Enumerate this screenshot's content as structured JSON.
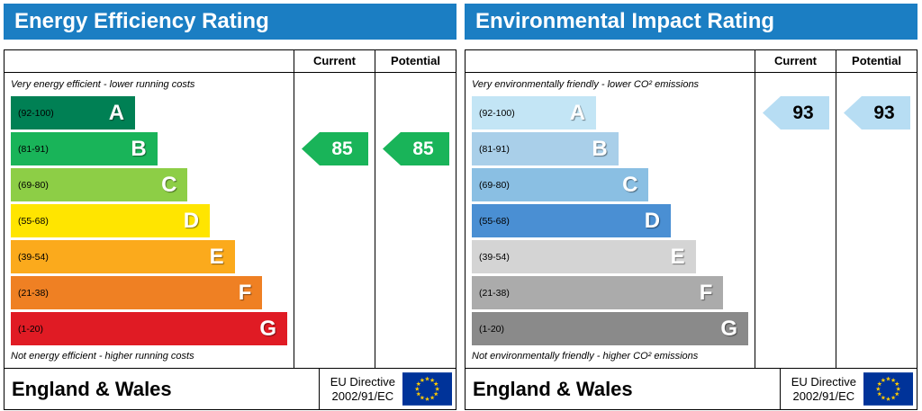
{
  "panels": [
    {
      "title": "Energy Efficiency Rating",
      "header_color": "#1b7ec3",
      "columns": {
        "current": "Current",
        "potential": "Potential"
      },
      "note_top": "Very energy efficient - lower running costs",
      "note_bottom": "Not energy efficient - higher running costs",
      "bands": [
        {
          "letter": "A",
          "range": "(92-100)",
          "color": "#008054",
          "width_pct": 45
        },
        {
          "letter": "B",
          "range": "(81-91)",
          "color": "#19b459",
          "width_pct": 53
        },
        {
          "letter": "C",
          "range": "(69-80)",
          "color": "#8dce46",
          "width_pct": 64
        },
        {
          "letter": "D",
          "range": "(55-68)",
          "color": "#ffe500",
          "width_pct": 72
        },
        {
          "letter": "E",
          "range": "(39-54)",
          "color": "#fbaa1c",
          "width_pct": 81
        },
        {
          "letter": "F",
          "range": "(21-38)",
          "color": "#ef8023",
          "width_pct": 91
        },
        {
          "letter": "G",
          "range": "(1-20)",
          "color": "#e01b24",
          "width_pct": 100
        }
      ],
      "current": {
        "value": "85",
        "band_index": 1,
        "color": "#19b459",
        "text_color": "#ffffff"
      },
      "potential": {
        "value": "85",
        "band_index": 1,
        "color": "#19b459",
        "text_color": "#ffffff"
      },
      "footer": {
        "region": "England & Wales",
        "directive_line1": "EU Directive",
        "directive_line2": "2002/91/EC"
      }
    },
    {
      "title": "Environmental Impact Rating",
      "header_color": "#1b7ec3",
      "columns": {
        "current": "Current",
        "potential": "Potential"
      },
      "note_top": "Very environmentally friendly - lower CO² emissions",
      "note_bottom": "Not environmentally friendly - higher CO² emissions",
      "bands": [
        {
          "letter": "A",
          "range": "(92-100)",
          "color": "#c3e5f5",
          "width_pct": 45
        },
        {
          "letter": "B",
          "range": "(81-91)",
          "color": "#a9cfe9",
          "width_pct": 53
        },
        {
          "letter": "C",
          "range": "(69-80)",
          "color": "#8abfe3",
          "width_pct": 64
        },
        {
          "letter": "D",
          "range": "(55-68)",
          "color": "#4a8fd3",
          "width_pct": 72
        },
        {
          "letter": "E",
          "range": "(39-54)",
          "color": "#d4d4d4",
          "width_pct": 81
        },
        {
          "letter": "F",
          "range": "(21-38)",
          "color": "#ababab",
          "width_pct": 91
        },
        {
          "letter": "G",
          "range": "(1-20)",
          "color": "#8a8a8a",
          "width_pct": 100
        }
      ],
      "current": {
        "value": "93",
        "band_index": 0,
        "color": "#b7ddf3",
        "text_color": "#000000"
      },
      "potential": {
        "value": "93",
        "band_index": 0,
        "color": "#b7ddf3",
        "text_color": "#000000"
      },
      "footer": {
        "region": "England & Wales",
        "directive_line1": "EU Directive",
        "directive_line2": "2002/91/EC"
      }
    }
  ],
  "eu_flag": {
    "field_color": "#003399",
    "star_color": "#ffcc00"
  },
  "chart_data": [
    {
      "type": "bar",
      "title": "Energy Efficiency Rating",
      "categories": [
        "A",
        "B",
        "C",
        "D",
        "E",
        "F",
        "G"
      ],
      "band_ranges": [
        "92-100",
        "81-91",
        "69-80",
        "55-68",
        "39-54",
        "21-38",
        "1-20"
      ],
      "series": [
        {
          "name": "Current",
          "values": [
            85
          ],
          "band": "B"
        },
        {
          "name": "Potential",
          "values": [
            85
          ],
          "band": "B"
        }
      ],
      "ylim": [
        1,
        100
      ],
      "xlabel": "",
      "ylabel": "",
      "legend_position": "none"
    },
    {
      "type": "bar",
      "title": "Environmental Impact Rating",
      "categories": [
        "A",
        "B",
        "C",
        "D",
        "E",
        "F",
        "G"
      ],
      "band_ranges": [
        "92-100",
        "81-91",
        "69-80",
        "55-68",
        "39-54",
        "21-38",
        "1-20"
      ],
      "series": [
        {
          "name": "Current",
          "values": [
            93
          ],
          "band": "A"
        },
        {
          "name": "Potential",
          "values": [
            93
          ],
          "band": "A"
        }
      ],
      "ylim": [
        1,
        100
      ],
      "xlabel": "",
      "ylabel": "",
      "legend_position": "none"
    }
  ]
}
